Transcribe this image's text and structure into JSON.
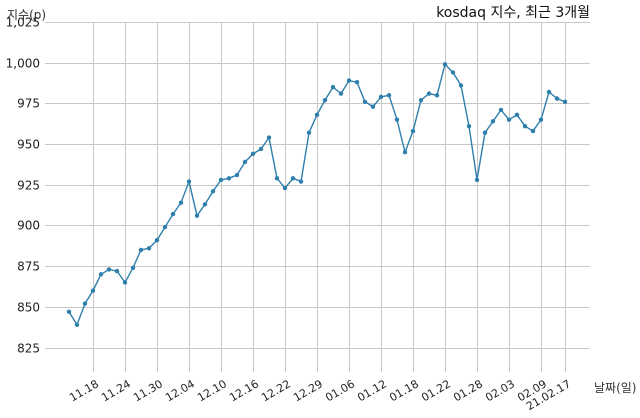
{
  "chart_data": {
    "type": "line",
    "title": "kosdaq 지수, 최근 3개월",
    "xlabel": "날짜(일)",
    "ylabel": "지수(p)",
    "ylim": [
      810,
      1025
    ],
    "yticks": [
      825,
      850,
      875,
      900,
      925,
      950,
      975,
      1000,
      1025
    ],
    "ytick_labels": [
      "825",
      "850",
      "875",
      "900",
      "925",
      "950",
      "975",
      "1,000",
      "1,025"
    ],
    "xtick_labels": [
      "11.18",
      "11.24",
      "11.30",
      "12.04",
      "12.10",
      "12.16",
      "12.22",
      "12.29",
      "01.06",
      "01.12",
      "01.18",
      "01.22",
      "01.28",
      "02.03",
      "02.09",
      "21.02.17"
    ],
    "xtick_positions": [
      3,
      7,
      11,
      15,
      19,
      23,
      27,
      31,
      35,
      39,
      43,
      47,
      51,
      55,
      59,
      62
    ],
    "grid": true,
    "series": [
      {
        "color": "#2f7fad",
        "values": [
          847,
          839,
          852,
          860,
          870,
          873,
          872,
          865,
          874,
          885,
          886,
          891,
          899,
          907,
          914,
          927,
          906,
          913,
          921,
          928,
          929,
          931,
          939,
          944,
          947,
          954,
          929,
          923,
          929,
          927,
          957,
          968,
          977,
          985,
          981,
          989,
          988,
          976,
          973,
          979,
          980,
          965,
          945,
          958,
          977,
          981,
          980,
          999,
          994,
          986,
          961,
          928,
          957,
          964,
          971,
          965,
          968,
          961,
          958,
          965,
          982,
          978,
          976
        ]
      }
    ]
  }
}
